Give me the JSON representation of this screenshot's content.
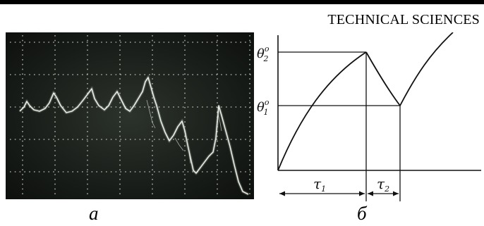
{
  "header": {
    "section_label": "TECHNICAL SCIENCES"
  },
  "figure": {
    "panel_a": {
      "caption": "a"
    },
    "panel_b": {
      "caption": "б",
      "theta2_base": "θ",
      "theta2_sub": "2",
      "theta2_sup": "o",
      "theta1_base": "θ",
      "theta1_sub": "1",
      "theta1_sup": "o",
      "tau1_base": "τ",
      "tau1_sub": "1",
      "tau2_base": "τ",
      "tau2_sub": "2"
    }
  },
  "colors": {
    "scope_bg": "#1f2420",
    "trace": "#e3ebe0",
    "grid": "#cfd6cb",
    "ink": "#111111"
  }
}
